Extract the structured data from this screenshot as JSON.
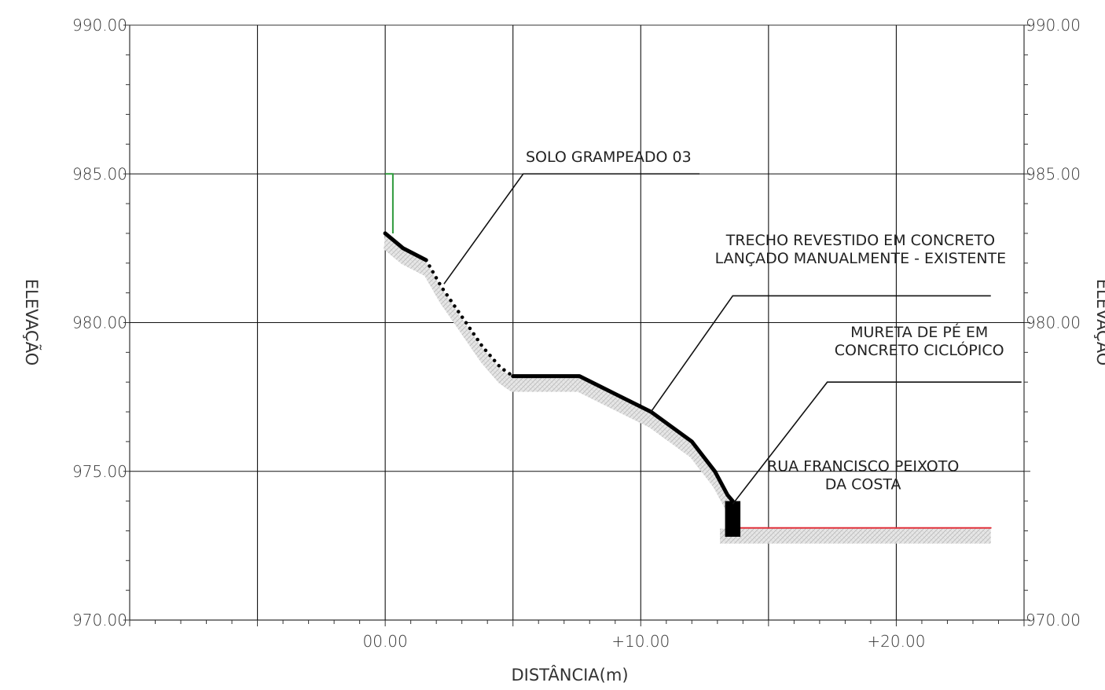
{
  "chart_data": {
    "type": "line",
    "xlabel": "DISTÂNCIA(m)",
    "ylabel_left": "ELEVAÇÃO",
    "ylabel_right": "ELEVAÇÃO",
    "xlim": [
      -10,
      25
    ],
    "ylim": [
      970,
      990
    ],
    "x_ticks": [
      {
        "value": 0,
        "label": "00.00"
      },
      {
        "value": 10,
        "label": "+10.00"
      },
      {
        "value": 20,
        "label": "+20.00"
      }
    ],
    "y_ticks_left": [
      {
        "value": 990,
        "label": "990.00"
      },
      {
        "value": 985,
        "label": "985.00"
      },
      {
        "value": 980,
        "label": "980.00"
      },
      {
        "value": 975,
        "label": "975.00"
      },
      {
        "value": 970,
        "label": "970.00"
      }
    ],
    "y_ticks_right": [
      {
        "value": 990,
        "label": "990.00"
      },
      {
        "value": 985,
        "label": "985.00"
      },
      {
        "value": 980,
        "label": "980.00"
      },
      {
        "value": 970,
        "label": "970.00"
      }
    ],
    "grid": true,
    "series": [
      {
        "key": "terrain_upper",
        "style": "solid",
        "color": "#000000",
        "x": [
          0,
          0.7,
          1.6
        ],
        "y": [
          983.0,
          982.5,
          982.1
        ]
      },
      {
        "key": "soil_nail_slope",
        "style": "dotted",
        "color": "#000000",
        "x": [
          1.6,
          2.2,
          3.0,
          3.8,
          4.5,
          5.0
        ],
        "y": [
          982.1,
          981.2,
          980.2,
          979.2,
          978.5,
          978.2
        ]
      },
      {
        "key": "concrete_lined",
        "style": "solid",
        "color": "#000000",
        "x": [
          5.0,
          7.6,
          9.0,
          10.4,
          12.0,
          12.9,
          13.4,
          13.6
        ],
        "y": [
          978.2,
          978.2,
          977.6,
          977.0,
          976.0,
          975.0,
          974.2,
          974.0
        ]
      },
      {
        "key": "road",
        "style": "solid",
        "color": "#e0303a",
        "x": [
          13.8,
          23.7
        ],
        "y": [
          973.1,
          973.1
        ]
      }
    ],
    "green_marker": {
      "x": [
        0,
        0.3,
        0.3
      ],
      "y": [
        985.0,
        985.0,
        983.0
      ],
      "color": "#2e9a3c"
    },
    "wall": {
      "x0": 13.3,
      "x1": 13.9,
      "y0": 972.8,
      "y1": 974.0
    },
    "annotations": [
      {
        "lines": [
          "SOLO GRAMPEADO 03"
        ],
        "leader_from": [
          2.3,
          981.3
        ],
        "leader_elbow": [
          5.4,
          985.0
        ],
        "leader_end": [
          12.3,
          985.0
        ],
        "text_at": [
          5.5,
          985.4
        ],
        "anchor": "start"
      },
      {
        "lines": [
          "TRECHO REVESTIDO EM CONCRETO",
          "LANÇADO MANUALMENTE - EXISTENTE"
        ],
        "leader_from": [
          10.4,
          977.0
        ],
        "leader_elbow": [
          13.6,
          980.9
        ],
        "leader_end": [
          23.7,
          980.9
        ],
        "text_at": [
          18.6,
          982.0
        ],
        "anchor": "middle"
      },
      {
        "lines": [
          "MURETA DE PÉ EM",
          "CONCRETO CICLÓPICO"
        ],
        "leader_from": [
          13.6,
          973.9
        ],
        "leader_elbow": [
          17.3,
          978.0
        ],
        "leader_end": [
          24.9,
          978.0
        ],
        "text_at": [
          20.9,
          978.9
        ],
        "anchor": "middle"
      },
      {
        "lines": [
          "RUA FRANCISCO PEIXOTO",
          "DA COSTA"
        ],
        "leader_from": null,
        "leader_elbow": null,
        "leader_end": null,
        "text_at": [
          18.7,
          974.4
        ],
        "anchor": "middle"
      }
    ]
  }
}
